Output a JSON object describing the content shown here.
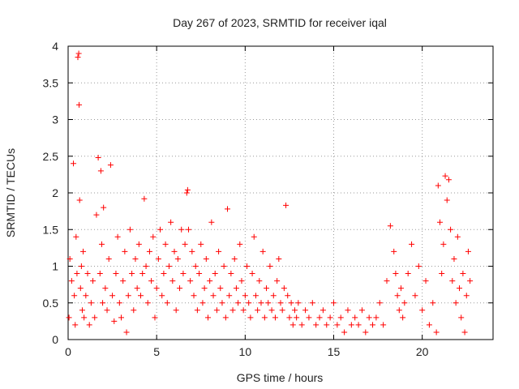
{
  "chart_data": {
    "type": "scatter",
    "title": "Day 267 of 2023, SRMTID for receiver iqal",
    "xlabel": "GPS time / hours",
    "ylabel": "SRMTID / TECUs",
    "xlim": [
      0,
      24
    ],
    "ylim": [
      0,
      4
    ],
    "xticks": [
      0,
      5,
      10,
      15,
      20
    ],
    "yticks": [
      0,
      0.5,
      1,
      1.5,
      2,
      2.5,
      3,
      3.5,
      4
    ],
    "xtick_labels": [
      "0",
      "5",
      "10",
      "15",
      "20"
    ],
    "ytick_labels": [
      "0",
      "0.5",
      "1",
      "1.5",
      "2",
      "2.5",
      "3",
      "3.5",
      "4"
    ],
    "grid": true,
    "marker": "+",
    "color": "#ff0000",
    "series": [
      {
        "name": "SRMTID",
        "x": [
          0.05,
          0.1,
          0.2,
          0.3,
          0.35,
          0.4,
          0.45,
          0.5,
          0.55,
          0.6,
          0.62,
          0.65,
          0.7,
          0.75,
          0.8,
          0.85,
          0.9,
          1.0,
          1.1,
          1.2,
          1.3,
          1.4,
          1.5,
          1.6,
          1.7,
          1.8,
          1.85,
          1.9,
          1.95,
          2.0,
          2.1,
          2.2,
          2.3,
          2.4,
          2.5,
          2.6,
          2.7,
          2.8,
          2.9,
          3.0,
          3.1,
          3.2,
          3.3,
          3.4,
          3.5,
          3.6,
          3.7,
          3.8,
          3.9,
          4.0,
          4.1,
          4.2,
          4.3,
          4.4,
          4.5,
          4.6,
          4.7,
          4.8,
          4.9,
          5.0,
          5.1,
          5.2,
          5.3,
          5.4,
          5.5,
          5.6,
          5.7,
          5.8,
          5.9,
          6.0,
          6.1,
          6.2,
          6.3,
          6.4,
          6.5,
          6.6,
          6.7,
          6.75,
          6.8,
          6.9,
          7.0,
          7.1,
          7.2,
          7.3,
          7.4,
          7.5,
          7.6,
          7.7,
          7.8,
          7.9,
          8.0,
          8.1,
          8.2,
          8.3,
          8.4,
          8.5,
          8.6,
          8.7,
          8.8,
          8.9,
          9.0,
          9.1,
          9.2,
          9.3,
          9.4,
          9.5,
          9.6,
          9.7,
          9.8,
          9.9,
          10.0,
          10.1,
          10.2,
          10.3,
          10.4,
          10.5,
          10.6,
          10.7,
          10.8,
          10.9,
          11.0,
          11.1,
          11.2,
          11.3,
          11.4,
          11.5,
          11.6,
          11.7,
          11.8,
          11.9,
          12.0,
          12.1,
          12.2,
          12.3,
          12.4,
          12.5,
          12.6,
          12.7,
          12.8,
          12.9,
          13.0,
          13.2,
          13.4,
          13.6,
          13.8,
          14.0,
          14.2,
          14.4,
          14.6,
          14.8,
          15.0,
          15.2,
          15.4,
          15.6,
          15.8,
          16.0,
          16.2,
          16.4,
          16.6,
          16.8,
          17.0,
          17.2,
          17.4,
          17.6,
          17.8,
          18.0,
          18.2,
          18.4,
          18.5,
          18.6,
          18.7,
          18.8,
          18.9,
          19.0,
          19.2,
          19.4,
          19.6,
          19.8,
          20.0,
          20.2,
          20.4,
          20.6,
          20.8,
          20.9,
          21.0,
          21.1,
          21.2,
          21.3,
          21.4,
          21.5,
          21.6,
          21.7,
          21.8,
          21.9,
          22.0,
          22.1,
          22.2,
          22.3,
          22.4,
          22.5,
          22.6,
          22.7
        ],
        "y": [
          0.3,
          1.1,
          0.8,
          2.4,
          0.6,
          0.2,
          1.4,
          0.9,
          3.85,
          3.9,
          3.2,
          1.9,
          0.7,
          1.0,
          0.4,
          1.2,
          0.3,
          0.6,
          0.9,
          0.2,
          0.5,
          0.8,
          0.3,
          1.7,
          2.48,
          0.9,
          2.3,
          1.3,
          0.5,
          1.8,
          0.7,
          0.4,
          1.1,
          2.38,
          0.6,
          0.25,
          0.9,
          1.4,
          0.5,
          0.3,
          0.8,
          1.2,
          0.1,
          0.6,
          1.5,
          0.9,
          0.4,
          1.1,
          0.7,
          1.3,
          0.6,
          0.9,
          1.92,
          1.0,
          0.5,
          1.2,
          0.8,
          1.4,
          0.3,
          0.7,
          1.1,
          1.5,
          0.6,
          0.9,
          1.3,
          0.5,
          1.0,
          1.6,
          0.8,
          1.2,
          0.4,
          1.1,
          0.7,
          1.5,
          0.9,
          1.3,
          2.0,
          2.04,
          1.5,
          0.8,
          1.2,
          0.6,
          1.0,
          0.4,
          0.9,
          1.3,
          0.5,
          0.7,
          1.1,
          0.3,
          0.8,
          1.6,
          0.6,
          0.9,
          0.4,
          1.2,
          0.7,
          0.5,
          1.0,
          0.3,
          1.78,
          0.6,
          0.9,
          0.4,
          1.1,
          0.7,
          0.5,
          1.3,
          0.8,
          0.4,
          0.6,
          1.0,
          0.5,
          0.3,
          0.9,
          1.4,
          0.6,
          0.4,
          0.8,
          0.5,
          1.2,
          0.3,
          0.7,
          0.5,
          1.0,
          0.4,
          0.6,
          0.3,
          0.8,
          1.1,
          0.5,
          0.4,
          0.7,
          1.83,
          0.6,
          0.3,
          0.5,
          0.2,
          0.4,
          0.3,
          0.5,
          0.2,
          0.4,
          0.3,
          0.5,
          0.2,
          0.3,
          0.4,
          0.2,
          0.3,
          0.5,
          0.2,
          0.3,
          0.1,
          0.4,
          0.2,
          0.3,
          0.2,
          0.4,
          0.1,
          0.3,
          0.2,
          0.3,
          0.5,
          0.2,
          0.8,
          1.55,
          1.2,
          0.9,
          0.6,
          0.4,
          0.7,
          0.3,
          0.5,
          0.9,
          1.3,
          0.6,
          1.0,
          0.4,
          0.8,
          0.2,
          0.5,
          0.1,
          2.1,
          1.6,
          0.9,
          1.3,
          2.23,
          1.9,
          2.18,
          1.5,
          0.8,
          1.1,
          0.5,
          1.4,
          0.7,
          0.3,
          0.9,
          0.1,
          0.6,
          1.2,
          0.8
        ]
      }
    ]
  }
}
